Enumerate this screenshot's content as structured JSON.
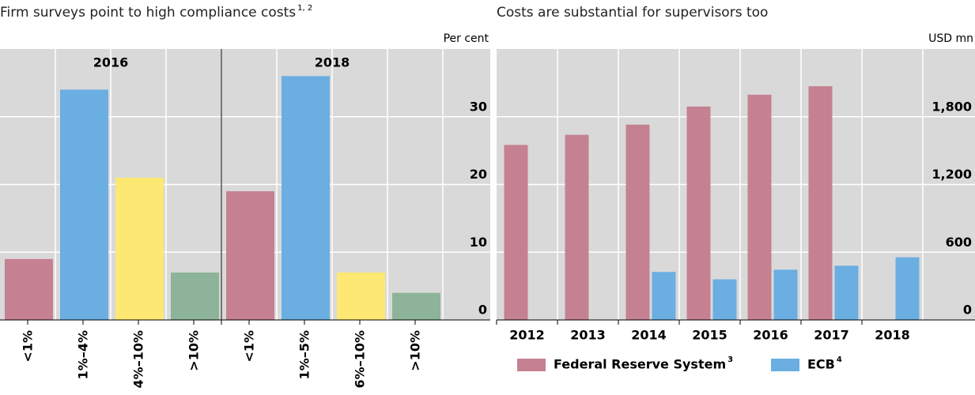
{
  "chart_data": [
    {
      "type": "bar",
      "title": "Firm surveys point to high compliance costs",
      "title_note": "1, 2",
      "unit": "Per cent",
      "groups": [
        {
          "label": "2016",
          "categories": [
            "<1%",
            "1%–4%",
            "4%–10%",
            ">10%"
          ],
          "values": [
            9,
            34,
            21,
            7
          ]
        },
        {
          "label": "2018",
          "categories": [
            "<1%",
            "1%–5%",
            "6%–10%",
            ">10%"
          ],
          "values": [
            19,
            36,
            7,
            4
          ]
        }
      ],
      "colors": [
        "#c58191",
        "#6aaee2",
        "#fde873",
        "#8db39b"
      ],
      "ylim": [
        0,
        40
      ],
      "yticks": [
        0,
        10,
        20,
        30
      ],
      "grid": true
    },
    {
      "type": "grouped_bar",
      "title": "Costs are substantial for supervisors too",
      "unit": "USD mn",
      "categories": [
        "2012",
        "2013",
        "2014",
        "2015",
        "2016",
        "2017",
        "2018"
      ],
      "series": [
        {
          "name": "Federal Reserve System",
          "note": "3",
          "color": "#c58191",
          "values": [
            1550,
            1640,
            1730,
            1890,
            1995,
            2070,
            null
          ]
        },
        {
          "name": "ECB",
          "note": "4",
          "color": "#6aaee2",
          "values": [
            null,
            null,
            425,
            360,
            445,
            480,
            555
          ]
        }
      ],
      "ylim": [
        0,
        2400
      ],
      "yticks": [
        0,
        600,
        {
          "value": 1200,
          "label": "1,200"
        },
        {
          "value": 1800,
          "label": "1,800"
        }
      ],
      "grid": true,
      "legend": "bottom"
    }
  ]
}
